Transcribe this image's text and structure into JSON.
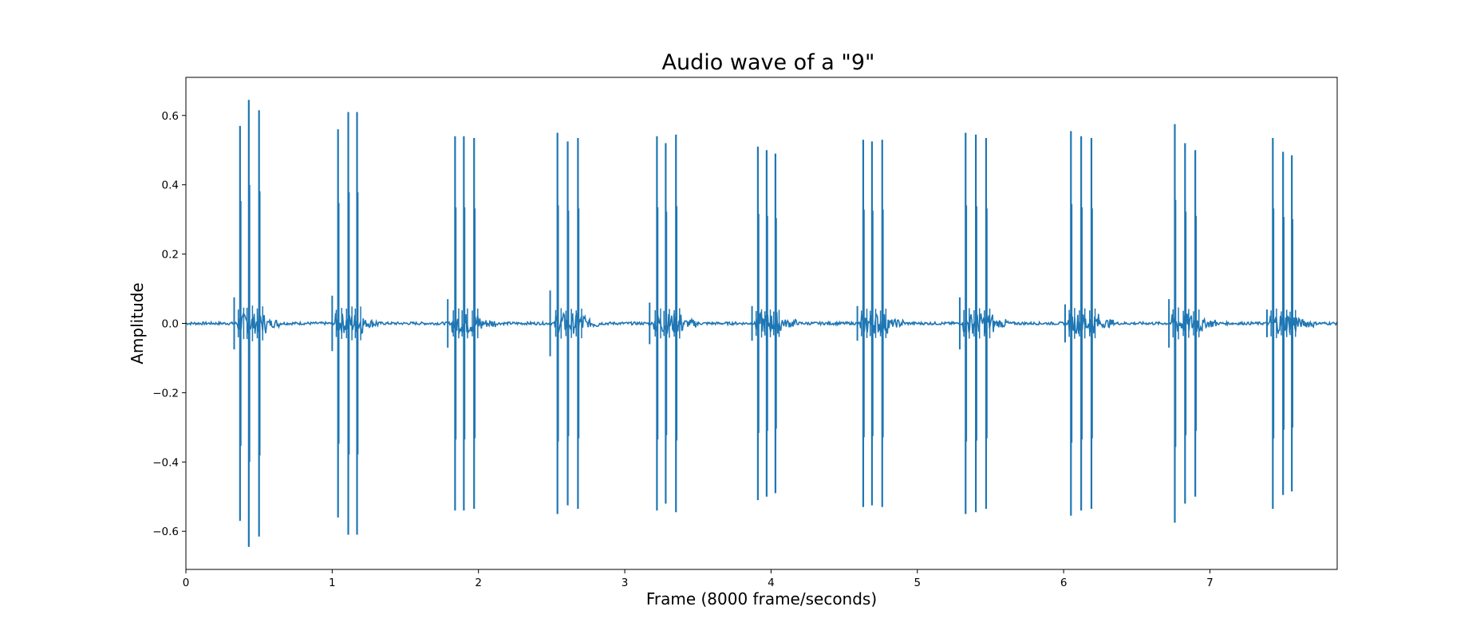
{
  "chart_data": {
    "type": "line",
    "title": "Audio wave of a \"9\"",
    "xlabel": "Frame (8000 frame/seconds)",
    "ylabel": "Amplitude",
    "xlim": [
      0,
      7.87
    ],
    "ylim": [
      -0.71,
      0.71
    ],
    "x_ticks": [
      0,
      1,
      2,
      3,
      4,
      5,
      6,
      7
    ],
    "x_tick_labels": [
      "0",
      "1",
      "2",
      "3",
      "4",
      "5",
      "6",
      "7"
    ],
    "y_ticks": [
      0.6,
      0.4,
      0.2,
      0.0,
      -0.2,
      -0.4,
      -0.6
    ],
    "y_tick_labels": [
      "0.6",
      "0.4",
      "0.2",
      "0.0",
      "−0.2",
      "−0.4",
      "−0.6"
    ],
    "grid": false,
    "legend": "none",
    "series": [
      {
        "color": "#1f77b4",
        "beeps": [
          {
            "pre": [
              0.33,
              0.075
            ],
            "spikes": [
              [
                0.37,
                0.57
              ],
              [
                0.43,
                0.645
              ],
              [
                0.5,
                0.615
              ]
            ]
          },
          {
            "pre": [
              1.0,
              0.08
            ],
            "spikes": [
              [
                1.04,
                0.56
              ],
              [
                1.11,
                0.61
              ],
              [
                1.17,
                0.61
              ]
            ]
          },
          {
            "pre": [
              1.79,
              0.07
            ],
            "spikes": [
              [
                1.84,
                0.54
              ],
              [
                1.9,
                0.54
              ],
              [
                1.97,
                0.535
              ]
            ]
          },
          {
            "pre": [
              2.49,
              0.095
            ],
            "spikes": [
              [
                2.54,
                0.55
              ],
              [
                2.61,
                0.525
              ],
              [
                2.68,
                0.535
              ]
            ]
          },
          {
            "pre": [
              3.17,
              0.06
            ],
            "spikes": [
              [
                3.22,
                0.54
              ],
              [
                3.28,
                0.52
              ],
              [
                3.35,
                0.545
              ]
            ]
          },
          {
            "pre": [
              3.87,
              0.05
            ],
            "spikes": [
              [
                3.91,
                0.51
              ],
              [
                3.97,
                0.5
              ],
              [
                4.03,
                0.49
              ]
            ]
          },
          {
            "pre": [
              4.59,
              0.05
            ],
            "spikes": [
              [
                4.63,
                0.53
              ],
              [
                4.69,
                0.525
              ],
              [
                4.76,
                0.53
              ]
            ]
          },
          {
            "pre": [
              5.29,
              0.075
            ],
            "spikes": [
              [
                5.33,
                0.55
              ],
              [
                5.4,
                0.545
              ],
              [
                5.47,
                0.535
              ]
            ]
          },
          {
            "pre": [
              6.01,
              0.055
            ],
            "spikes": [
              [
                6.05,
                0.555
              ],
              [
                6.12,
                0.54
              ],
              [
                6.19,
                0.535
              ]
            ]
          },
          {
            "pre": [
              6.72,
              0.07
            ],
            "spikes": [
              [
                6.76,
                0.575
              ],
              [
                6.83,
                0.52
              ],
              [
                6.9,
                0.5
              ]
            ]
          },
          {
            "pre": [
              7.39,
              0.04
            ],
            "spikes": [
              [
                7.43,
                0.535
              ],
              [
                7.5,
                0.495
              ],
              [
                7.56,
                0.485
              ]
            ]
          }
        ]
      }
    ]
  }
}
